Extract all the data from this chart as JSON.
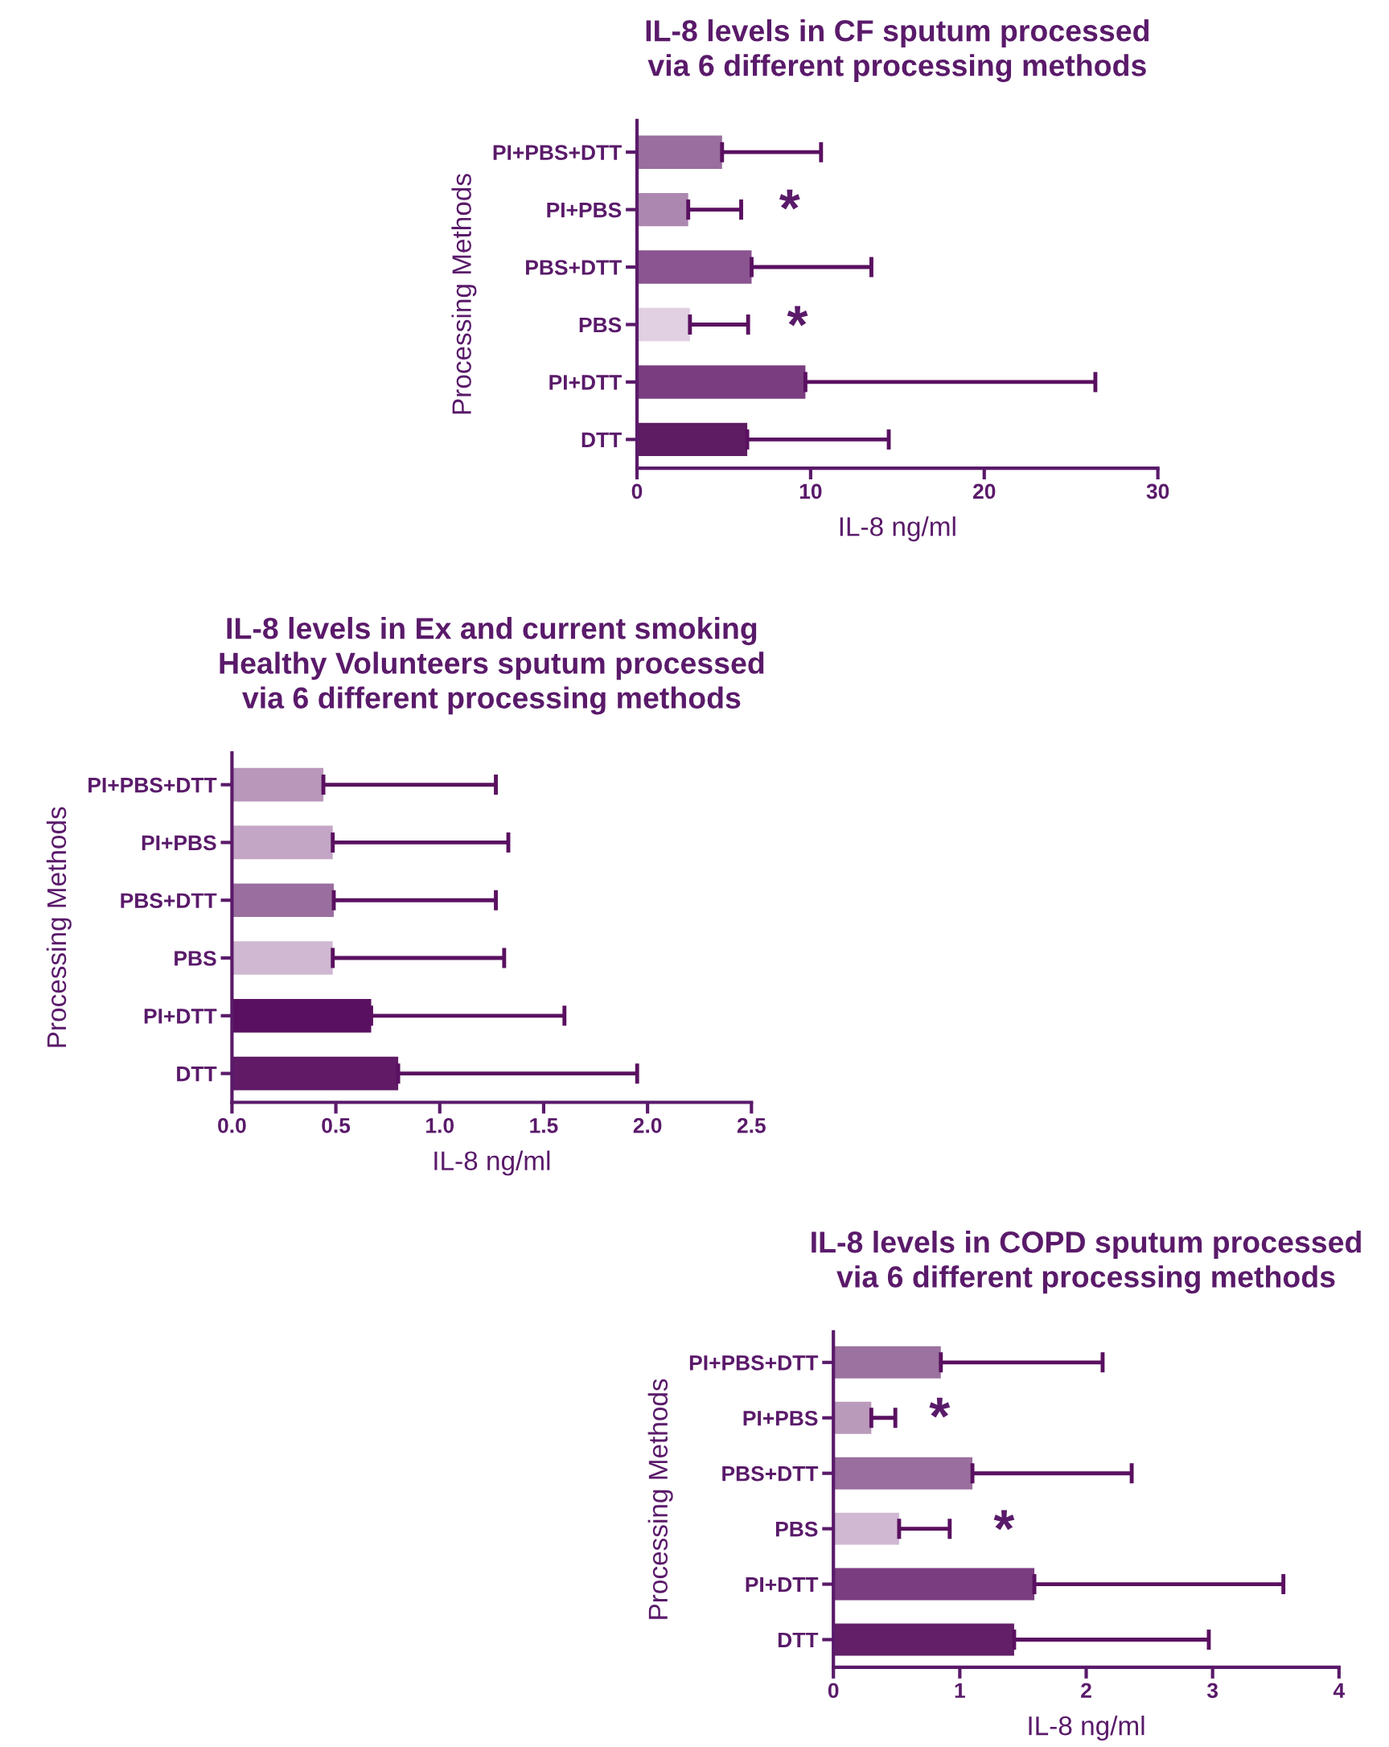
{
  "chart_data": [
    {
      "type": "bar",
      "orientation": "horizontal",
      "title": "IL-8 levels in CF sputum processed\nvia 6 different processing methods",
      "xlabel": "IL-8 ng/ml",
      "ylabel": "Processing Methods",
      "categories": [
        "PI+PBS+DTT",
        "PI+PBS",
        "PBS+DTT",
        "PBS",
        "PI+DTT",
        "DTT"
      ],
      "values": [
        4.9,
        2.95,
        6.6,
        3.05,
        9.7,
        6.35
      ],
      "errors": [
        [
          4.9,
          10.6
        ],
        [
          2.95,
          6.0
        ],
        [
          6.6,
          13.5
        ],
        [
          3.05,
          6.4
        ],
        [
          9.7,
          26.4
        ],
        [
          6.35,
          14.5
        ]
      ],
      "colors": [
        "#9a6e9e",
        "#ac88b0",
        "#8a5590",
        "#e0d0e2",
        "#7a3d80",
        "#5e1c62"
      ],
      "xlim": [
        0,
        30
      ],
      "xticks": [
        0,
        10,
        20,
        30
      ],
      "grid": false,
      "legend": false,
      "annotations": [
        "*",
        "*"
      ]
    },
    {
      "type": "bar",
      "orientation": "horizontal",
      "title": "IL-8 levels in Ex and current smoking\nHealthy Volunteers sputum processed\nvia 6 different processing methods",
      "xlabel": "IL-8 ng/ml",
      "ylabel": "Processing Methods",
      "categories": [
        "PI+PBS+DTT",
        "PI+PBS",
        "PBS+DTT",
        "PBS",
        "PI+DTT",
        "DTT"
      ],
      "values": [
        0.44,
        0.485,
        0.49,
        0.485,
        0.67,
        0.8
      ],
      "errors": [
        [
          0.44,
          1.27
        ],
        [
          0.485,
          1.33
        ],
        [
          0.49,
          1.27
        ],
        [
          0.485,
          1.31
        ],
        [
          0.67,
          1.6
        ],
        [
          0.8,
          1.95
        ]
      ],
      "colors": [
        "#b897ba",
        "#c3a6c6",
        "#9a6e9e",
        "#d0b8d2",
        "#5a1060",
        "#601a66"
      ],
      "xlim": [
        0,
        2.5
      ],
      "xticks": [
        {
          "value": 0,
          "label": "0.0"
        },
        0.5,
        {
          "value": 1,
          "label": "1.0"
        },
        1.5,
        {
          "value": 2,
          "label": "2.0"
        },
        2.5
      ],
      "grid": false,
      "legend": false
    },
    {
      "type": "bar",
      "orientation": "horizontal",
      "title": "IL-8 levels in COPD sputum processed\nvia 6 different processing methods",
      "xlabel": "IL-8 ng/ml",
      "ylabel": "Processing Methods",
      "categories": [
        "PI+PBS+DTT",
        "PI+PBS",
        "PBS+DTT",
        "PBS",
        "PI+DTT",
        "DTT"
      ],
      "values": [
        0.85,
        0.3,
        1.1,
        0.52,
        1.59,
        1.43
      ],
      "errors": [
        [
          0.85,
          2.13
        ],
        [
          0.3,
          0.49
        ],
        [
          1.1,
          2.36
        ],
        [
          0.52,
          0.92
        ],
        [
          1.59,
          3.56
        ],
        [
          1.43,
          2.97
        ]
      ],
      "colors": [
        "#9c72a0",
        "#b99aba",
        "#9a6e9e",
        "#d0b8d2",
        "#7a3d80",
        "#632068"
      ],
      "xlim": [
        0,
        4
      ],
      "xticks": [
        0,
        1,
        2,
        3,
        4
      ],
      "grid": false,
      "legend": false,
      "annotations": [
        "*",
        "*"
      ]
    }
  ]
}
